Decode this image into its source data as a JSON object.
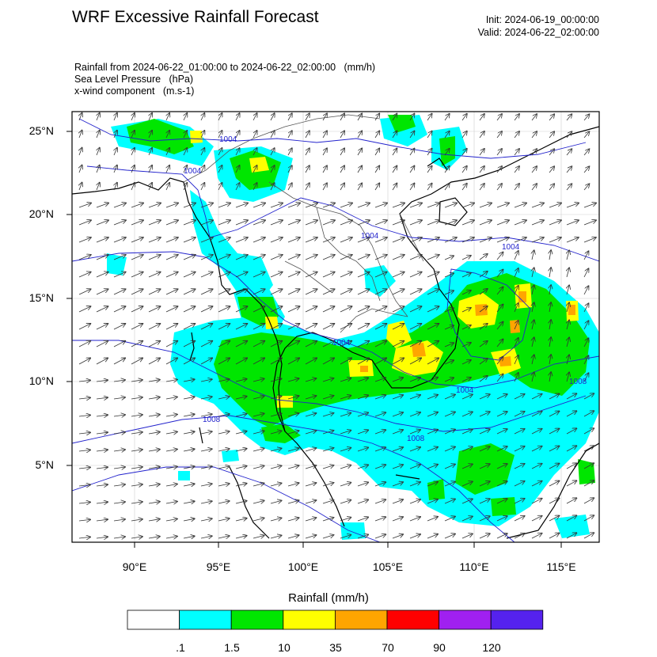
{
  "header": {
    "title": "WRF Excessive Rainfall Forecast",
    "init": "Init: 2024-06-19_00:00:00",
    "valid": "Valid: 2024-06-22_02:00:00"
  },
  "description": {
    "line1": "Rainfall from 2024-06-22_01:00:00 to 2024-06-22_02:00:00   (mm/h)",
    "line2": "Sea Level Pressure   (hPa)",
    "line3": "x-wind component   (m.s-1)"
  },
  "axes": {
    "lon_labels": [
      "90°E",
      "95°E",
      "100°E",
      "105°E",
      "110°E",
      "115°E"
    ],
    "lat_labels": [
      "25°N",
      "20°N",
      "15°N",
      "10°N",
      "5°N"
    ]
  },
  "isobar_labels": [
    "1004",
    "1004",
    "1004",
    "1004",
    "1004",
    "1004",
    "1008",
    "1008",
    "1008"
  ],
  "colorbar": {
    "title": "Rainfall  (mm/h)",
    "colors": [
      "#ffffff",
      "#00ffff",
      "#00e600",
      "#ffff00",
      "#ffa500",
      "#ff0000",
      "#a020f0",
      "#5522ee"
    ],
    "labels": [
      ".1",
      "1.5",
      "10",
      "35",
      "70",
      "90",
      "120"
    ]
  },
  "colors": {
    "isobar": "#2222cc",
    "coastline": "#000000",
    "border": "#333333"
  }
}
